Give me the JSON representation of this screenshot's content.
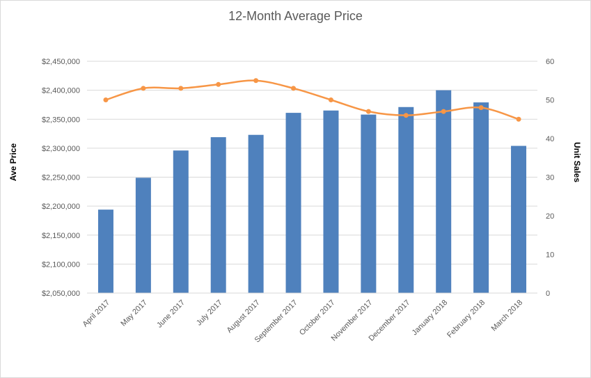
{
  "chart_data": {
    "type": "bar",
    "title": "12-Month Average Price",
    "ylabel": "Ave Price",
    "ylabel_secondary": "Unit Sales",
    "xlabel": "",
    "categories": [
      "April 2017",
      "May 2017",
      "June 2017",
      "July 2017",
      "August 2017",
      "September 2017",
      "October 2017",
      "November 2017",
      "December 2017",
      "January 2018",
      "February 2018",
      "March 2018"
    ],
    "series": [
      {
        "type": "bar",
        "axis": "left",
        "color": "#4f81bd",
        "values": [
          2194000,
          2249000,
          2296000,
          2319000,
          2323000,
          2361000,
          2365000,
          2358000,
          2371000,
          2400000,
          2379000,
          2304000
        ]
      },
      {
        "type": "line",
        "axis": "right",
        "color": "#f79646",
        "values": [
          50,
          53,
          53,
          54,
          55,
          53,
          50,
          47,
          46,
          47,
          48,
          45
        ]
      }
    ],
    "ylim": [
      2050000,
      2450000
    ],
    "ylim_secondary": [
      0,
      60
    ],
    "y_ticks": [
      "$2,050,000",
      "$2,100,000",
      "$2,150,000",
      "$2,200,000",
      "$2,250,000",
      "$2,300,000",
      "$2,350,000",
      "$2,400,000",
      "$2,450,000"
    ],
    "y_ticks_secondary": [
      "0",
      "10",
      "20",
      "30",
      "40",
      "50",
      "60"
    ],
    "grid": true,
    "legend": "none"
  }
}
